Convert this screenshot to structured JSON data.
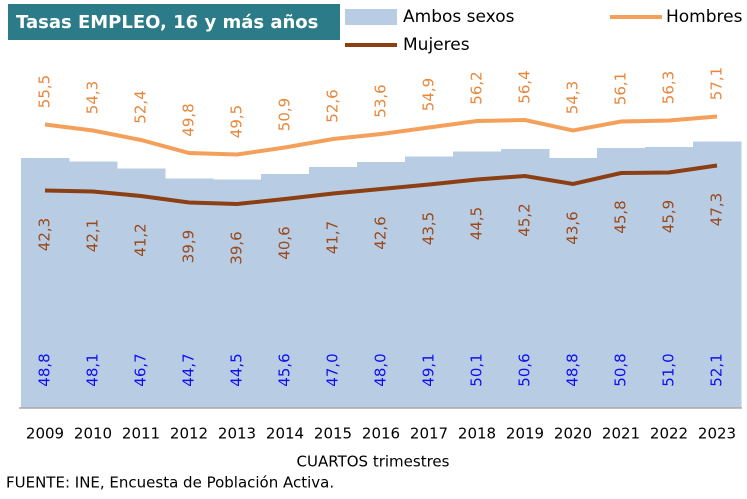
{
  "chart_data": {
    "type": "line",
    "title": "Tasas EMPLEO, 16 y más años",
    "x_label": "CUARTOS trimestres",
    "source": "FUENTE: INE, Encuesta de Población Activa.",
    "categories": [
      "2009",
      "2010",
      "2011",
      "2012",
      "2013",
      "2014",
      "2015",
      "2016",
      "2017",
      "2018",
      "2019",
      "2020",
      "2021",
      "2022",
      "2023"
    ],
    "ylim": [
      0,
      80
    ],
    "series": [
      {
        "name": "Ambos sexos",
        "kind": "area",
        "color": "#b8cce4",
        "label_color": "#1010ee",
        "values": [
          48.8,
          48.1,
          46.7,
          44.7,
          44.5,
          45.6,
          47.0,
          48.0,
          49.1,
          50.1,
          50.6,
          48.8,
          50.8,
          51.0,
          52.1
        ],
        "value_labels": [
          "48,8",
          "48,1",
          "46,7",
          "44,7",
          "44,5",
          "45,6",
          "47,0",
          "48,0",
          "49,1",
          "50,1",
          "50,6",
          "48,8",
          "50,8",
          "51,0",
          "52,1"
        ]
      },
      {
        "name": "Hombres",
        "kind": "line",
        "color": "#f5a05a",
        "label_color": "#e8873a",
        "values": [
          55.5,
          54.3,
          52.4,
          49.8,
          49.5,
          50.9,
          52.6,
          53.6,
          54.9,
          56.2,
          56.4,
          54.3,
          56.1,
          56.3,
          57.1
        ],
        "value_labels": [
          "55,5",
          "54,3",
          "52,4",
          "49,8",
          "49,5",
          "50,9",
          "52,6",
          "53,6",
          "54,9",
          "56,2",
          "56,4",
          "54,3",
          "56,1",
          "56,3",
          "57,1"
        ]
      },
      {
        "name": "Mujeres",
        "kind": "line",
        "color": "#8b3f12",
        "label_color": "#9a4a1a",
        "values": [
          42.3,
          42.1,
          41.2,
          39.9,
          39.6,
          40.6,
          41.7,
          42.6,
          43.5,
          44.5,
          45.2,
          43.6,
          45.8,
          45.9,
          47.3
        ],
        "value_labels": [
          "42,3",
          "42,1",
          "41,2",
          "39,9",
          "39,6",
          "40,6",
          "41,7",
          "42,6",
          "43,5",
          "44,5",
          "45,2",
          "43,6",
          "45,8",
          "45,9",
          "47,3"
        ]
      }
    ]
  }
}
